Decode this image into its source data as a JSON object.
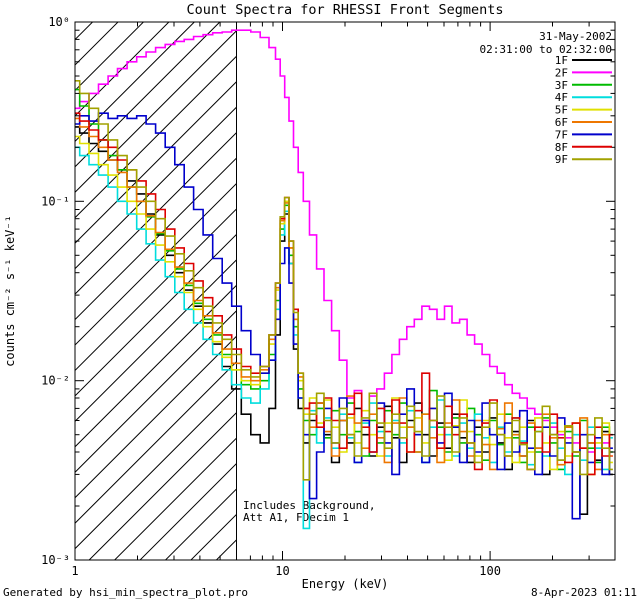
{
  "title": "Count Spectra for RHESSI Front Segments",
  "obs": {
    "date": "31-May-2002",
    "interval": "02:31:00 to 02:32:00"
  },
  "annotations": {
    "line1": "Includes Background,",
    "line2": "Att A1, FDecim 1"
  },
  "footer": {
    "left": "Generated by hsi_min_spectra_plot.pro",
    "right": "8-Apr-2023 01:11"
  },
  "axes": {
    "xlabel": "Energy (keV)",
    "ylabel": "counts cm⁻² s⁻¹ keV⁻¹",
    "x_tick_labels": [
      "1",
      "10",
      "100"
    ],
    "x_tick_values": [
      1,
      10,
      100
    ],
    "y_tick_labels": [
      "10⁰",
      "10⁻¹",
      "10⁻²",
      "10⁻³"
    ],
    "y_tick_values": [
      1,
      0.1,
      0.01,
      0.001
    ]
  },
  "chart_data": {
    "type": "line",
    "title": "Count Spectra for RHESSI Front Segments",
    "xlabel": "Energy (keV)",
    "ylabel": "counts cm⁻² s⁻¹ keV⁻¹",
    "xscale": "log",
    "yscale": "log",
    "xlim": [
      1,
      400
    ],
    "ylim": [
      0.001,
      1.0
    ],
    "grid": false,
    "legend_position": "upper right inside",
    "attenuator_vline_kev": 6,
    "hatch_region_kev": [
      1,
      6
    ],
    "energies_kev": [
      1.0,
      1.11,
      1.23,
      1.37,
      1.52,
      1.69,
      1.88,
      2.09,
      2.32,
      2.58,
      2.87,
      3.19,
      3.54,
      3.93,
      4.37,
      4.86,
      5.4,
      6.0,
      6.67,
      7.41,
      8.23,
      9.0,
      9.5,
      10.0,
      10.5,
      11.0,
      11.6,
      12.2,
      13.0,
      14.0,
      15.2,
      16.5,
      18.0,
      19.6,
      21.3,
      23.1,
      25.1,
      27.3,
      29.7,
      32.3,
      35.1,
      38.1,
      41.4,
      45.0,
      49.0,
      53.2,
      57.9,
      62.9,
      68.4,
      74.3,
      80.8,
      87.8,
      95.5,
      103.8,
      112.8,
      122.6,
      133.3,
      144.9,
      157.5,
      171.2,
      186.1,
      202.3,
      219.9,
      239.0,
      259.8,
      282.4,
      307.0,
      333.0,
      361.0,
      391.0
    ],
    "series": [
      {
        "name": "1F",
        "color": "#000000",
        "counts": [
          0.26,
          0.24,
          0.21,
          0.19,
          0.17,
          0.15,
          0.13,
          0.11,
          0.085,
          0.065,
          0.05,
          0.04,
          0.032,
          0.026,
          0.021,
          0.016,
          0.012,
          0.009,
          0.0065,
          0.005,
          0.0045,
          0.007,
          0.018,
          0.06,
          0.085,
          0.045,
          0.015,
          0.007,
          0.0045,
          0.006,
          0.0075,
          0.005,
          0.0035,
          0.006,
          0.0045,
          0.007,
          0.005,
          0.0038,
          0.0055,
          0.0072,
          0.0048,
          0.0035,
          0.006,
          0.0075,
          0.005,
          0.0038,
          0.0058,
          0.0042,
          0.0065,
          0.0048,
          0.0035,
          0.0055,
          0.004,
          0.0062,
          0.0045,
          0.0032,
          0.0052,
          0.0038,
          0.006,
          0.0042,
          0.003,
          0.005,
          0.0036,
          0.0055,
          0.004,
          0.0018,
          0.0045,
          0.0036,
          0.0052,
          0.003
        ]
      },
      {
        "name": "2F",
        "color": "#ff00ff",
        "counts": [
          0.33,
          0.36,
          0.4,
          0.45,
          0.5,
          0.55,
          0.6,
          0.64,
          0.68,
          0.72,
          0.75,
          0.78,
          0.8,
          0.83,
          0.85,
          0.87,
          0.88,
          0.9,
          0.9,
          0.88,
          0.82,
          0.72,
          0.62,
          0.5,
          0.38,
          0.28,
          0.2,
          0.145,
          0.1,
          0.065,
          0.042,
          0.028,
          0.019,
          0.013,
          0.008,
          0.0088,
          0.006,
          0.0082,
          0.009,
          0.011,
          0.014,
          0.017,
          0.02,
          0.022,
          0.026,
          0.025,
          0.022,
          0.026,
          0.021,
          0.022,
          0.018,
          0.016,
          0.014,
          0.012,
          0.011,
          0.0095,
          0.0085,
          0.008,
          0.007,
          0.0065,
          0.006,
          0.0055,
          0.005,
          0.0048,
          0.0045,
          0.0042,
          0.004,
          0.0042,
          0.0045,
          0.0038
        ]
      },
      {
        "name": "3F",
        "color": "#00bb00",
        "counts": [
          0.42,
          0.34,
          0.27,
          0.22,
          0.18,
          0.15,
          0.12,
          0.1,
          0.082,
          0.066,
          0.053,
          0.042,
          0.034,
          0.027,
          0.022,
          0.018,
          0.014,
          0.0115,
          0.0095,
          0.009,
          0.01,
          0.014,
          0.028,
          0.07,
          0.095,
          0.05,
          0.02,
          0.009,
          0.006,
          0.005,
          0.007,
          0.0048,
          0.0068,
          0.005,
          0.0075,
          0.0052,
          0.0038,
          0.006,
          0.0045,
          0.0068,
          0.005,
          0.0075,
          0.0055,
          0.004,
          0.0065,
          0.0088,
          0.0055,
          0.004,
          0.0062,
          0.0045,
          0.007,
          0.005,
          0.0036,
          0.006,
          0.0044,
          0.0065,
          0.0048,
          0.0035,
          0.0055,
          0.004,
          0.0062,
          0.0045,
          0.0032,
          0.0052,
          0.0038,
          0.006,
          0.0042,
          0.0035,
          0.0055,
          0.004
        ]
      },
      {
        "name": "4F",
        "color": "#00dddd",
        "counts": [
          0.2,
          0.18,
          0.16,
          0.14,
          0.12,
          0.1,
          0.085,
          0.07,
          0.058,
          0.047,
          0.038,
          0.031,
          0.025,
          0.021,
          0.017,
          0.014,
          0.0115,
          0.0095,
          0.008,
          0.0075,
          0.009,
          0.013,
          0.025,
          0.065,
          0.088,
          0.045,
          0.018,
          0.008,
          0.0015,
          0.0068,
          0.0045,
          0.0062,
          0.0042,
          0.0065,
          0.0048,
          0.0035,
          0.0058,
          0.0075,
          0.0052,
          0.0038,
          0.006,
          0.0045,
          0.0068,
          0.005,
          0.0035,
          0.0055,
          0.0078,
          0.005,
          0.0038,
          0.0058,
          0.0042,
          0.0065,
          0.0048,
          0.0035,
          0.0055,
          0.004,
          0.0062,
          0.0046,
          0.0034,
          0.0052,
          0.0038,
          0.0058,
          0.0042,
          0.003,
          0.005,
          0.0036,
          0.0055,
          0.0042,
          0.0032,
          0.0048
        ]
      },
      {
        "name": "5F",
        "color": "#e0e000",
        "counts": [
          0.23,
          0.21,
          0.185,
          0.16,
          0.14,
          0.12,
          0.1,
          0.085,
          0.07,
          0.057,
          0.046,
          0.038,
          0.031,
          0.025,
          0.02,
          0.0165,
          0.0135,
          0.0115,
          0.01,
          0.0095,
          0.011,
          0.016,
          0.032,
          0.075,
          0.1,
          0.055,
          0.022,
          0.01,
          0.0065,
          0.008,
          0.0058,
          0.0078,
          0.0055,
          0.004,
          0.0062,
          0.0045,
          0.0068,
          0.005,
          0.0038,
          0.0058,
          0.008,
          0.0055,
          0.004,
          0.0062,
          0.0045,
          0.007,
          0.005,
          0.0036,
          0.0056,
          0.0078,
          0.0052,
          0.0038,
          0.006,
          0.0044,
          0.0065,
          0.0048,
          0.0035,
          0.0055,
          0.004,
          0.0062,
          0.0045,
          0.0032,
          0.0052,
          0.0038,
          0.0058,
          0.0042,
          0.003,
          0.0045,
          0.0058,
          0.0035
        ]
      },
      {
        "name": "6F",
        "color": "#ee7700",
        "counts": [
          0.29,
          0.26,
          0.23,
          0.2,
          0.17,
          0.145,
          0.12,
          0.1,
          0.083,
          0.067,
          0.054,
          0.043,
          0.035,
          0.028,
          0.023,
          0.0185,
          0.015,
          0.0125,
          0.0105,
          0.01,
          0.0115,
          0.017,
          0.033,
          0.078,
          0.098,
          0.055,
          0.022,
          0.0105,
          0.007,
          0.0055,
          0.0075,
          0.0052,
          0.0038,
          0.006,
          0.0082,
          0.0058,
          0.0042,
          0.0065,
          0.0048,
          0.0035,
          0.0058,
          0.008,
          0.0055,
          0.004,
          0.0065,
          0.0048,
          0.0035,
          0.0058,
          0.0078,
          0.0052,
          0.0038,
          0.006,
          0.0044,
          0.0032,
          0.0054,
          0.0075,
          0.005,
          0.0038,
          0.0058,
          0.0042,
          0.0065,
          0.0048,
          0.0034,
          0.0055,
          0.004,
          0.0062,
          0.0045,
          0.0032,
          0.005,
          0.0038
        ]
      },
      {
        "name": "7F",
        "color": "#0000cc",
        "counts": [
          0.27,
          0.3,
          0.28,
          0.31,
          0.29,
          0.3,
          0.29,
          0.3,
          0.27,
          0.24,
          0.2,
          0.16,
          0.12,
          0.09,
          0.065,
          0.048,
          0.035,
          0.026,
          0.019,
          0.014,
          0.011,
          0.013,
          0.022,
          0.045,
          0.055,
          0.035,
          0.016,
          0.008,
          0.005,
          0.0022,
          0.004,
          0.007,
          0.0045,
          0.008,
          0.005,
          0.0035,
          0.006,
          0.004,
          0.0075,
          0.0045,
          0.003,
          0.0065,
          0.009,
          0.005,
          0.0035,
          0.007,
          0.0045,
          0.0085,
          0.0055,
          0.0035,
          0.006,
          0.004,
          0.0075,
          0.005,
          0.0032,
          0.0058,
          0.004,
          0.0068,
          0.0042,
          0.003,
          0.0055,
          0.0038,
          0.0062,
          0.0045,
          0.0017,
          0.005,
          0.0035,
          0.0048,
          0.003,
          0.0042
        ]
      },
      {
        "name": "8F",
        "color": "#dd0000",
        "counts": [
          0.31,
          0.28,
          0.25,
          0.22,
          0.2,
          0.17,
          0.15,
          0.13,
          0.11,
          0.09,
          0.07,
          0.055,
          0.045,
          0.036,
          0.029,
          0.023,
          0.018,
          0.015,
          0.012,
          0.011,
          0.012,
          0.018,
          0.035,
          0.08,
          0.105,
          0.06,
          0.025,
          0.011,
          0.007,
          0.0075,
          0.0055,
          0.008,
          0.006,
          0.0042,
          0.0065,
          0.0085,
          0.0055,
          0.004,
          0.007,
          0.0052,
          0.0078,
          0.0058,
          0.004,
          0.0068,
          0.011,
          0.006,
          0.0042,
          0.0072,
          0.005,
          0.0065,
          0.0045,
          0.0032,
          0.0058,
          0.0078,
          0.005,
          0.0038,
          0.0062,
          0.0045,
          0.0032,
          0.0055,
          0.004,
          0.0065,
          0.0048,
          0.0035,
          0.0058,
          0.0042,
          0.003,
          0.0055,
          0.0038,
          0.005
        ]
      },
      {
        "name": "9F",
        "color": "#a2a200",
        "counts": [
          0.47,
          0.4,
          0.33,
          0.27,
          0.22,
          0.18,
          0.15,
          0.12,
          0.1,
          0.08,
          0.064,
          0.051,
          0.041,
          0.033,
          0.026,
          0.021,
          0.017,
          0.014,
          0.0115,
          0.0105,
          0.012,
          0.018,
          0.035,
          0.082,
          0.105,
          0.06,
          0.024,
          0.011,
          0.0028,
          0.0065,
          0.0085,
          0.006,
          0.0045,
          0.007,
          0.005,
          0.0038,
          0.0062,
          0.0085,
          0.0058,
          0.0042,
          0.0065,
          0.0048,
          0.0072,
          0.0052,
          0.0038,
          0.006,
          0.0082,
          0.0055,
          0.004,
          0.0062,
          0.0045,
          0.0035,
          0.0055,
          0.0075,
          0.005,
          0.0038,
          0.006,
          0.0044,
          0.0032,
          0.0052,
          0.0072,
          0.005,
          0.0036,
          0.0056,
          0.004,
          0.003,
          0.005,
          0.0062,
          0.0042,
          0.0032
        ]
      }
    ]
  }
}
